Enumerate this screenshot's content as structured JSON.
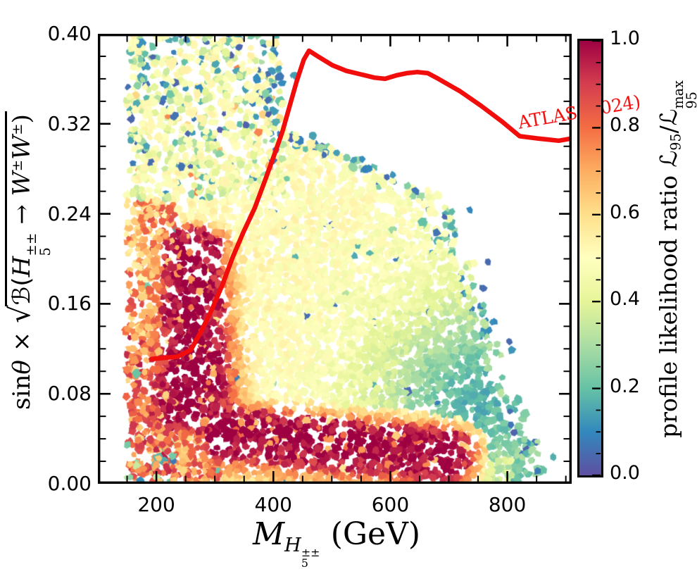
{
  "chart_data": {
    "type": "scatter",
    "title": "",
    "xlabel": "M_{H_5^{±±}} (GeV)",
    "ylabel": "sin θ × √(B(H_5^{±±} → W^{±} W^{±}))",
    "xlim": [
      100,
      910
    ],
    "ylim": [
      0.0,
      0.4
    ],
    "x_ticks": [
      200,
      400,
      600,
      800
    ],
    "x_tick_labels": [
      "200",
      "400",
      "600",
      "800"
    ],
    "x_minor_step": 50,
    "y_ticks": [
      0.4,
      0.32,
      0.24,
      0.16,
      0.08,
      0.0
    ],
    "y_tick_labels": [
      "0.40",
      "0.32",
      "0.24",
      "0.16",
      "0.08",
      "0.00"
    ],
    "y_minor_step": 0.02,
    "grid": false,
    "colorbar": {
      "ticks": [
        1.0,
        0.8,
        0.6,
        0.4,
        0.2,
        0.0
      ],
      "tick_labels": [
        "1.0",
        "0.8",
        "0.6",
        "0.4",
        "0.2",
        "0.0"
      ],
      "minor_step": 0.05,
      "label": "profile likelihood ratio L95/L95max",
      "colormap_name": "Spectral_r",
      "colormap": [
        [
          0.0,
          "#5e4fa2"
        ],
        [
          0.1,
          "#3288bd"
        ],
        [
          0.2,
          "#66c2a5"
        ],
        [
          0.3,
          "#abdda4"
        ],
        [
          0.4,
          "#e6f598"
        ],
        [
          0.5,
          "#ffffbf"
        ],
        [
          0.6,
          "#fee08b"
        ],
        [
          0.7,
          "#fdae61"
        ],
        [
          0.8,
          "#f46d43"
        ],
        [
          0.9,
          "#d53e4f"
        ],
        [
          1.0,
          "#9e0142"
        ]
      ]
    },
    "exclusion_curve": {
      "label": "ATLAS (2024)",
      "color": "#f20d0d",
      "width": 6.5,
      "points": [
        [
          192,
          0.111
        ],
        [
          236,
          0.113
        ],
        [
          259,
          0.119
        ],
        [
          277,
          0.136
        ],
        [
          295,
          0.155
        ],
        [
          313,
          0.177
        ],
        [
          331,
          0.202
        ],
        [
          349,
          0.224
        ],
        [
          368,
          0.245
        ],
        [
          386,
          0.27
        ],
        [
          404,
          0.296
        ],
        [
          416,
          0.314
        ],
        [
          428,
          0.336
        ],
        [
          440,
          0.358
        ],
        [
          452,
          0.377
        ],
        [
          461,
          0.385
        ],
        [
          476,
          0.38
        ],
        [
          501,
          0.372
        ],
        [
          525,
          0.367
        ],
        [
          549,
          0.364
        ],
        [
          573,
          0.361
        ],
        [
          591,
          0.36
        ],
        [
          610,
          0.363
        ],
        [
          628,
          0.365
        ],
        [
          646,
          0.366
        ],
        [
          664,
          0.365
        ],
        [
          682,
          0.36
        ],
        [
          719,
          0.349
        ],
        [
          755,
          0.336
        ],
        [
          791,
          0.322
        ],
        [
          821,
          0.309
        ],
        [
          852,
          0.307
        ],
        [
          888,
          0.305
        ],
        [
          910,
          0.307
        ]
      ]
    },
    "scatter_model": {
      "seed": 12345,
      "samples": 9500,
      "blob_r_min": 4.3,
      "blob_r_max": 7.0,
      "m_min": 150,
      "mmax_vs_y": [
        [
          0.401,
          403
        ],
        [
          0.315,
          425
        ],
        [
          0.25,
          700
        ],
        [
          0.18,
          748
        ],
        [
          0.1,
          788
        ],
        [
          0.05,
          830
        ],
        [
          0.0,
          872
        ]
      ],
      "red_band": {
        "vert_center": 263,
        "vert_sigma0": 40,
        "vert_sigma_grow": 90,
        "vert_ylo0": 0.03,
        "vert_ylo1": 0.06,
        "vert_yhi0": 0.21,
        "vert_yhi1": 0.245,
        "horiz_yc0": 0.052,
        "horiz_slope": 5e-05,
        "horiz_sigma_up": 0.014,
        "horiz_sigma_dn": 0.026,
        "horiz_m0": 260,
        "horiz_m1": 300,
        "horiz_fade0": 690,
        "horiz_fade1": 790
      },
      "teal_blob": {
        "m": 755,
        "y": 0.075,
        "sm": 125,
        "sy": 0.058,
        "depth": 0.3
      },
      "base_level": 0.52
    }
  },
  "labels": {
    "x_title": {
      "m": "M",
      "h": "H",
      "pm": "±±",
      "five": "5",
      "unit": "(GeV)"
    },
    "y_title": {
      "sin": "sin",
      "theta": "θ",
      "times": "×",
      "rad": "√",
      "b": "ℬ(",
      "h": "H",
      "pm": "±±",
      "five": "5",
      "arrow": "→",
      "w1": "W",
      "pm1": "±",
      "w2": "W",
      "pm2": "±",
      "close": ")"
    },
    "cb_title": {
      "text": "profile likelihood ratio",
      "l1": "ℒ",
      "sub1": "95",
      "slash": "/",
      "l2": "ℒ",
      "sub2": "95",
      "sup2": "max"
    },
    "atlas": "ATLAS (2024)"
  }
}
